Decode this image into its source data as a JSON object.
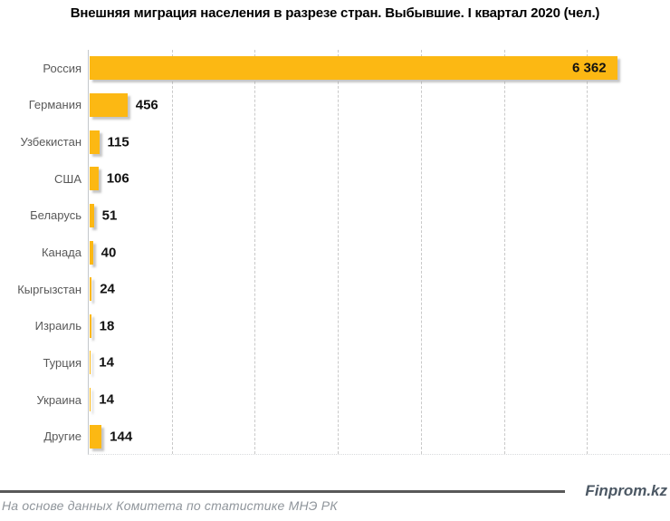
{
  "title": "Внешняя миграция населения в разрезе стран. Выбывшие. I квартал 2020 (чел.)",
  "chart_data": {
    "type": "bar",
    "orientation": "horizontal",
    "title": "Внешняя миграция населения в разрезе стран. Выбывшие. I квартал 2020 (чел.)",
    "categories": [
      "Россия",
      "Германия",
      "Узбекистан",
      "США",
      "Беларусь",
      "Канада",
      "Кыргызстан",
      "Израиль",
      "Турция",
      "Украина",
      "Другие"
    ],
    "values": [
      6362,
      456,
      115,
      106,
      51,
      40,
      24,
      18,
      14,
      14,
      144
    ],
    "value_labels": [
      "6 362",
      "456",
      "115",
      "106",
      "51",
      "40",
      "24",
      "18",
      "14",
      "14",
      "144"
    ],
    "xlabel": "",
    "ylabel": "",
    "xlim": [
      0,
      7000
    ],
    "gridline_step": 1000,
    "grid": "vertical-dashed",
    "legend": "none",
    "bar_color": "#FCB813"
  },
  "footer": {
    "brand": "Finprom.kz",
    "source": "На основе данных Комитета по статистике МНЭ РК"
  },
  "colors": {
    "bar": "#FCB813",
    "gridline": "#c9c9c9",
    "category_label": "#595959",
    "value_label": "#111111",
    "rule": "#595959",
    "brand": "#4c5864",
    "source": "#8f959b"
  }
}
